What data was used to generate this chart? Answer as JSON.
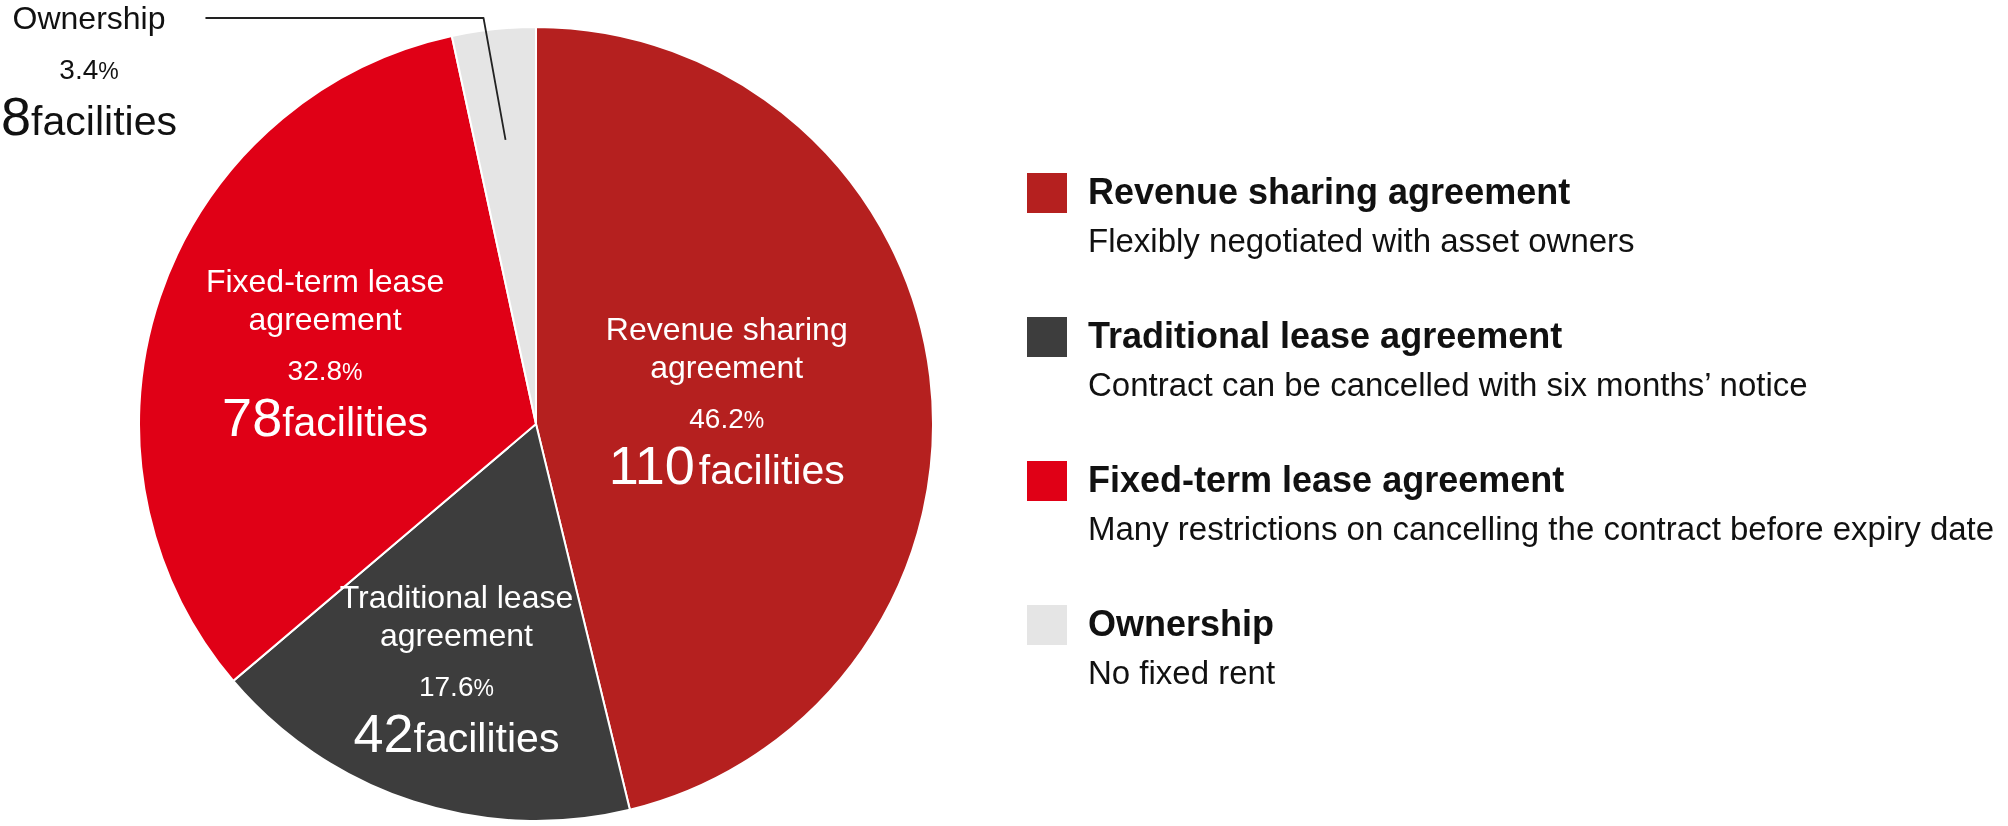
{
  "chart_data": {
    "type": "pie",
    "categories": [
      "Revenue sharing agreement",
      "Traditional lease agreement",
      "Fixed-term lease agreement",
      "Ownership"
    ],
    "values": [
      46.2,
      17.6,
      32.8,
      3.4
    ],
    "colors": [
      "#b5201f",
      "#3d3d3d",
      "#e00016",
      "#e5e5e5"
    ],
    "value_labels": [
      "46.2%\n110facilities",
      "17.6%\n42facilities",
      "32.8%\n78facilities",
      "3.4%\n8facilities"
    ],
    "annotations": [
      "Flexibly negotiated with asset owners",
      "Contract can be cancelled with six months’ notice",
      "Many restrictions on cancelling the contract before expiry date",
      "No fixed rent"
    ],
    "legend": "right"
  }
}
